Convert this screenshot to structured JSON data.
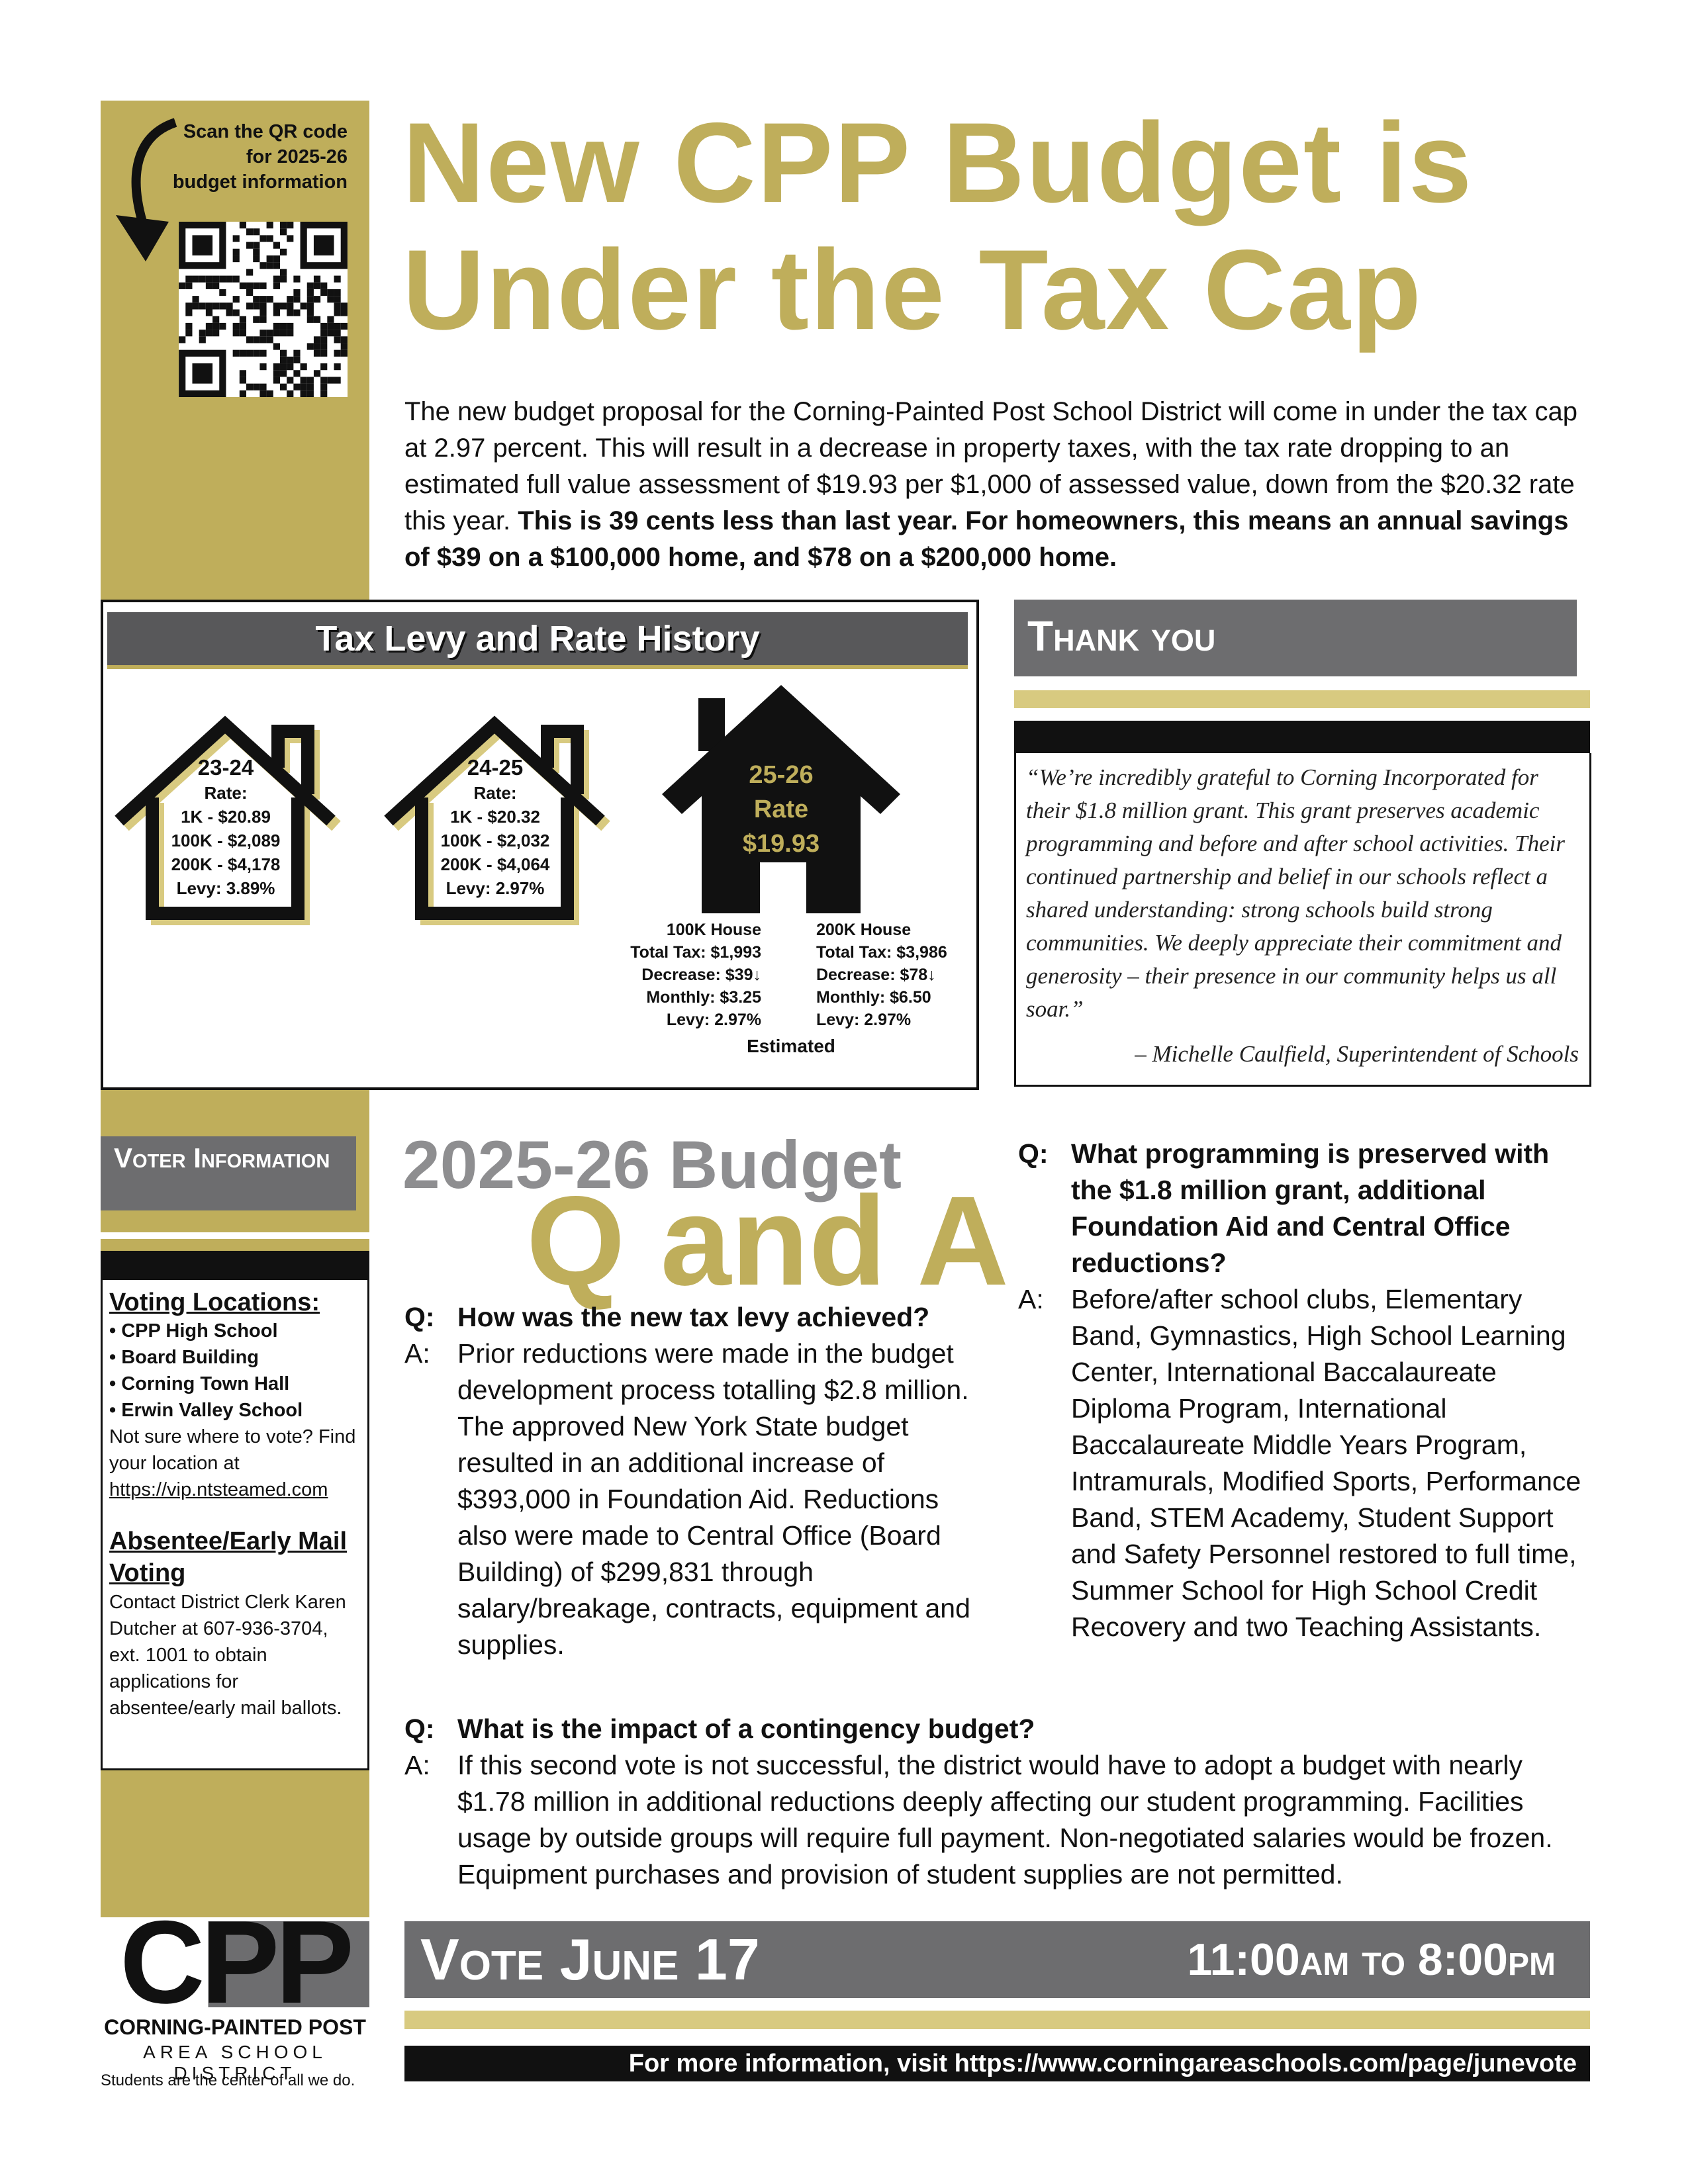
{
  "header": {
    "qr_caption": [
      "Scan the QR code",
      "for 2025-26",
      "budget information"
    ],
    "title_lines": [
      "New CPP Budget is",
      "Under the Tax Cap"
    ]
  },
  "intro": {
    "text": "The new budget proposal for the Corning-Painted Post School District will come in under the tax cap at 2.97 percent. This will result in a decrease in property taxes, with the tax rate dropping to an estimated full value assessment of $19.93 per $1,000 of assessed value, down from the $20.32 rate this year.",
    "bold": "This is 39 cents less than last year. For homeowners, this means an annual savings of $39 on a $100,000 home, and $78 on a $200,000 home."
  },
  "levy": {
    "title": "Tax Levy and Rate History",
    "houses": [
      {
        "period": "23-24",
        "lines": [
          "Rate:",
          "1K - $20.89",
          "100K - $2,089",
          "200K - $4,178",
          "Levy: 3.89%"
        ]
      },
      {
        "period": "24-25",
        "lines": [
          "Rate:",
          "1K - $20.32",
          "100K - $2,032",
          "200K - $4,064",
          "Levy: 2.97%"
        ]
      }
    ],
    "current": {
      "period": "25-26",
      "rate_label": "Rate",
      "rate": "$19.93",
      "details": [
        {
          "title": "100K House",
          "lines": [
            "Total Tax: $1,993",
            "Decrease: $39↓",
            "Monthly: $3.25",
            "Levy: 2.97%"
          ]
        },
        {
          "title": "200K House",
          "lines": [
            "Total Tax: $3,986",
            "Decrease: $78↓",
            "Monthly: $6.50",
            "Levy: 2.97%"
          ]
        }
      ],
      "note": "Estimated"
    }
  },
  "thank_you": {
    "title": "Thank you",
    "quote": "“We’re incredibly grateful to Corning Incorporated for their $1.8 million grant. This grant preserves academic programming and before and after school activities. Their continued partnership and belief in our schools reflect a shared understanding: strong schools build strong communities. We deeply appreciate their commitment and generosity – their presence in our community helps us all soar.”",
    "attribution": "– Michelle Caulfield, Superintendent of Schools"
  },
  "voter": {
    "title": "Voter Information",
    "locations_title": "Voting Locations:",
    "locations": [
      "• CPP High School",
      "• Board Building",
      "• Corning Town Hall",
      "• Erwin Valley School"
    ],
    "find_text": "Not sure where to vote? Find your location at",
    "find_url": "https://vip.ntsteamed.com",
    "absentee_title": "Absentee/Early Mail Voting",
    "absentee_text": "Contact District Clerk Karen Dutcher at 607-936-3704, ext. 1001 to obtain applications for absentee/early mail ballots."
  },
  "qa": {
    "title_top": "2025-26 Budget",
    "title_main": "Q and A",
    "items": [
      {
        "q_label": "Q:",
        "question": "How was the new tax levy achieved?",
        "a_label": "A:",
        "answer": "Prior reductions were made in the budget development process totalling $2.8 million. The approved New York State budget resulted in an additional increase of $393,000 in Foundation Aid. Reductions also were made to Central Office (Board Building) of $299,831 through salary/breakage, contracts, equipment and supplies."
      },
      {
        "q_label": "Q:",
        "question": "What programming is preserved with the $1.8 million grant, additional Foundation Aid and Central Office reductions?",
        "a_label": "A:",
        "answer": "Before/after school clubs, Elementary Band, Gymnastics, High School Learning Center, International Baccalaureate Diploma Program, International Baccalaureate Middle Years Program, Intramurals, Modified Sports, Performance Band, STEM Academy, Student Support and Safety Personnel restored to full time, Summer School for High School Credit Recovery and two Teaching Assistants."
      },
      {
        "q_label": "Q:",
        "question": "What is the impact of a contingency budget?",
        "a_label": "A:",
        "answer": "If this second vote is not successful, the district would have to adopt a budget with nearly $1.78 million in additional reductions deeply affecting our student programming. Facilities usage by outside groups will require full payment. Non-negotiated salaries would be frozen. Equipment purchases and provision of student supplies are not permitted."
      }
    ]
  },
  "vote": {
    "title": "Vote June 17",
    "hours": "11:00am to 8:00pm",
    "more_info": "For more information, visit https://www.corningareaschools.com/page/junevote"
  },
  "logo": {
    "mark": "CPP",
    "name": "CORNING-PAINTED POST",
    "district": "AREA SCHOOL DISTRICT",
    "tagline": "Students are the center of all we do."
  }
}
